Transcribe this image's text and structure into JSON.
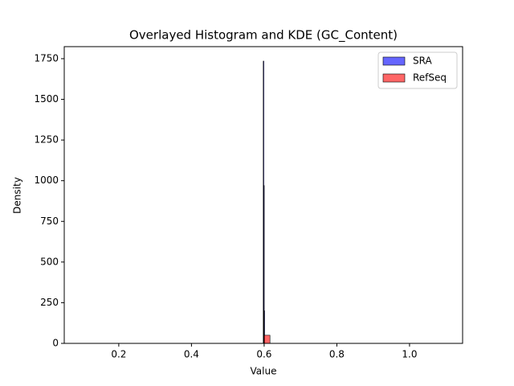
{
  "chart_data": {
    "type": "histogram",
    "title": "Overlayed Histogram and KDE (GC_Content)",
    "x_label": "Value",
    "y_label": "Density",
    "xlim": [
      0.05,
      1.146
    ],
    "ylim": [
      0,
      1824
    ],
    "xticks": [
      0.2,
      0.4,
      0.6,
      0.8,
      {
        "value": 1,
        "label": "1.0"
      }
    ],
    "yticks": [
      0,
      250,
      500,
      750,
      1000,
      1250,
      1500,
      1750
    ],
    "legend": "upper right",
    "series": [
      {
        "name": "SRA",
        "color": "#0000ff",
        "bins": [
          0.5975,
          0.5985,
          0.5995,
          0.6005
        ],
        "values": [
          1735,
          970,
          200
        ]
      },
      {
        "name": "RefSeq",
        "color": "#ff0000",
        "bins": [
          0.6,
          0.616
        ],
        "values": [
          50
        ]
      }
    ]
  }
}
